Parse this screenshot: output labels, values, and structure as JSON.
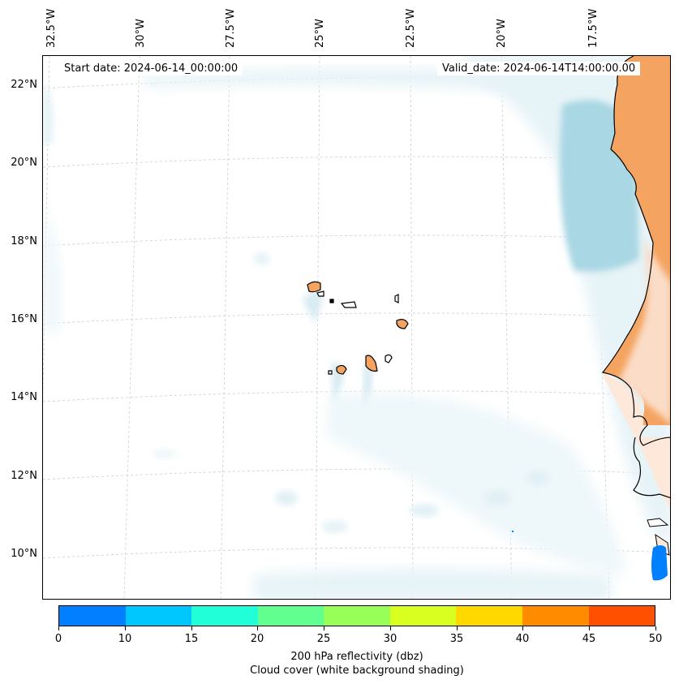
{
  "map": {
    "start_date": "Start date: 2024-06-14_00:00:00",
    "valid_date": "Valid_date: 2024-06-14T14:00:00.00",
    "lon_labels": [
      "32.5°W",
      "30°W",
      "27.5°W",
      "25°W",
      "22.5°W",
      "20°W",
      "17.5°W"
    ],
    "lat_labels": [
      "22°N",
      "20°N",
      "18°N",
      "16°N",
      "14°N",
      "12°N",
      "10°N"
    ],
    "colors": {
      "land_orange": "#f4a460",
      "land_light": "#fde8da",
      "cloud_blue": "#a9d7e3",
      "cloud_pale": "#e6f3f7",
      "radar_blue": "#0080ff",
      "gridline": "#cccccc"
    }
  },
  "colorbar": {
    "ticks": [
      "0",
      "10",
      "15",
      "20",
      "25",
      "30",
      "35",
      "40",
      "45",
      "50"
    ],
    "colors": [
      "#0080ff",
      "#00c8ff",
      "#20ffd8",
      "#60ff90",
      "#98ff58",
      "#d8ff20",
      "#ffd800",
      "#ff8c00",
      "#ff5000"
    ],
    "label": "200 hPa reflectivity (dbz)",
    "sublabel": "Cloud cover (white background shading)"
  }
}
